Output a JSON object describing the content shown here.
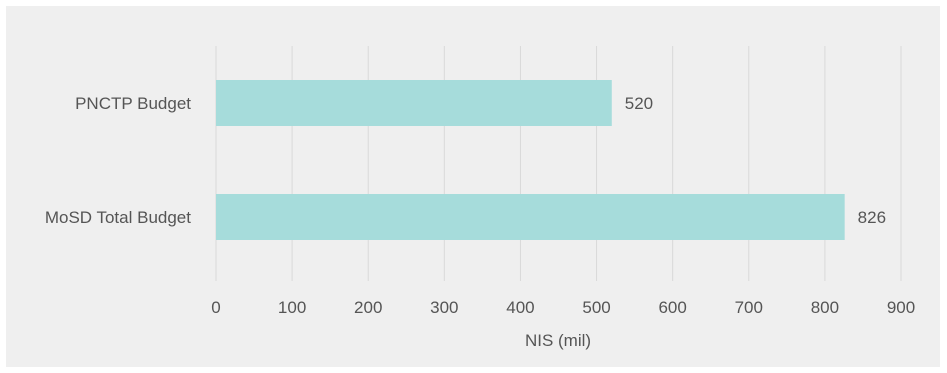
{
  "chart_data": {
    "type": "bar",
    "orientation": "horizontal",
    "categories": [
      "PNCTP Budget",
      "MoSD Total Budget"
    ],
    "values": [
      520,
      826
    ],
    "value_labels": [
      "520",
      "826"
    ],
    "title": "",
    "xlabel": "NIS (mil)",
    "ylabel": "",
    "xlim": [
      0,
      900
    ],
    "x_ticks": [
      0,
      100,
      200,
      300,
      400,
      500,
      600,
      700,
      800,
      900
    ],
    "x_tick_labels": [
      "0",
      "100",
      "200",
      "300",
      "400",
      "500",
      "600",
      "700",
      "800",
      "900"
    ],
    "grid": true,
    "legend": "none",
    "bar_color": "#a6dcdb",
    "grid_color": "#d9d9d9",
    "background_color": "#efefef"
  }
}
